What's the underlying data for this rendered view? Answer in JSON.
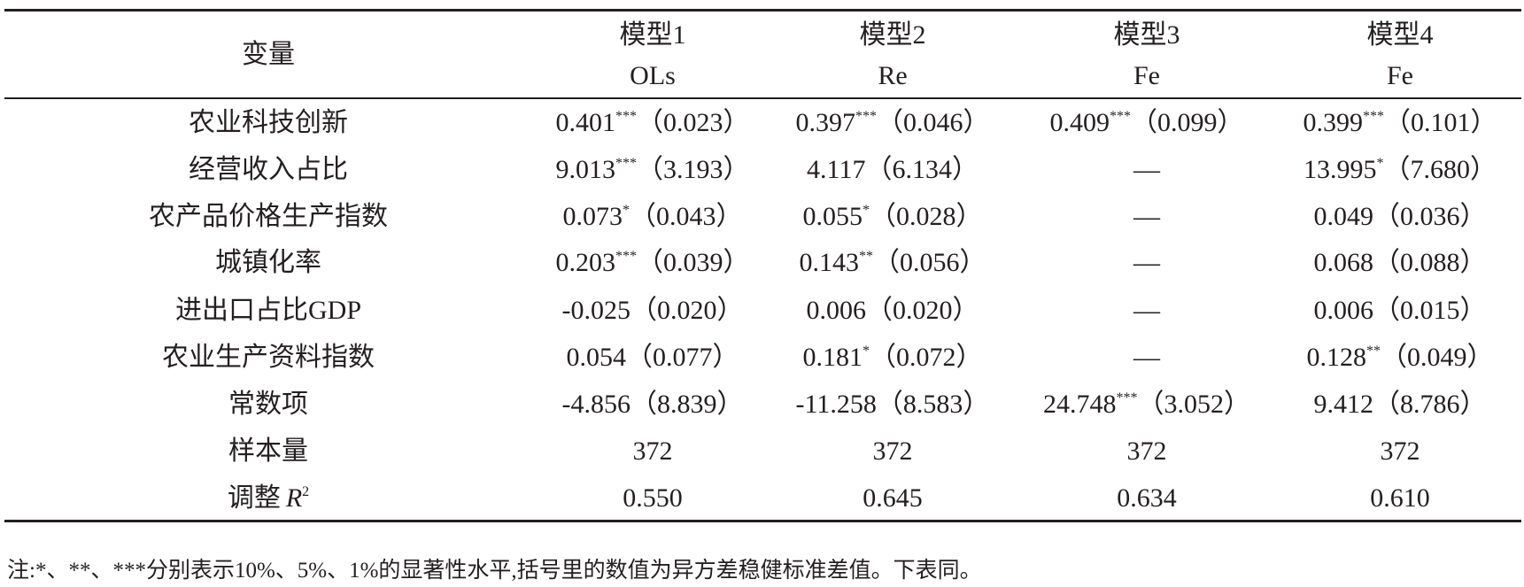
{
  "header": {
    "variable": "变量",
    "models": [
      {
        "name": "模型1",
        "method": "OLs"
      },
      {
        "name": "模型2",
        "method": "Re"
      },
      {
        "name": "模型3",
        "method": "Fe"
      },
      {
        "name": "模型4",
        "method": "Fe"
      }
    ]
  },
  "rows": [
    {
      "label": "农业科技创新",
      "cells": [
        {
          "value": "0.401",
          "stars": "***",
          "se": "（0.023）"
        },
        {
          "value": "0.397",
          "stars": "***",
          "se": "（0.046）"
        },
        {
          "value": "0.409",
          "stars": "***",
          "se": "（0.099）"
        },
        {
          "value": "0.399",
          "stars": "***",
          "se": "（0.101）"
        }
      ]
    },
    {
      "label": "经营收入占比",
      "cells": [
        {
          "value": "9.013",
          "stars": "***",
          "se": "（3.193）"
        },
        "4.117（6.134）",
        "—",
        {
          "value": "13.995",
          "stars": "*",
          "se": "（7.680）"
        }
      ]
    },
    {
      "label": "农产品价格生产指数",
      "cells": [
        {
          "value": "0.073",
          "stars": "*",
          "se": "（0.043）"
        },
        {
          "value": "0.055",
          "stars": "*",
          "se": "（0.028）"
        },
        "—",
        "0.049（0.036）"
      ]
    },
    {
      "label": "城镇化率",
      "cells": [
        {
          "value": "0.203",
          "stars": "***",
          "se": "（0.039）"
        },
        {
          "value": "0.143",
          "stars": "**",
          "se": "（0.056）"
        },
        "—",
        "0.068（0.088）"
      ]
    },
    {
      "label": "进出口占比GDP",
      "cells": [
        "-0.025（0.020）",
        "0.006（0.020）",
        "—",
        "0.006（0.015）"
      ]
    },
    {
      "label": "农业生产资料指数",
      "cells": [
        "0.054（0.077）",
        {
          "value": "0.181",
          "stars": "*",
          "se": "（0.072）"
        },
        "—",
        {
          "value": "0.128",
          "stars": "**",
          "se": "（0.049）"
        }
      ]
    },
    {
      "label": "常数项",
      "cells": [
        "-4.856（8.839）",
        "-11.258（8.583）",
        {
          "value": "24.748",
          "stars": "***",
          "se": "（3.052）"
        },
        "9.412（8.786）"
      ]
    },
    {
      "label": "样本量",
      "cells": [
        "372",
        "372",
        "372",
        "372"
      ]
    },
    {
      "label": {
        "text": "调整",
        "italic": "R",
        "sup": "2"
      },
      "cells": [
        "0.550",
        "0.645",
        "0.634",
        "0.610"
      ]
    }
  ],
  "note": "注:*、**、***分别表示10%、5%、1%的显著性水平,括号里的数值为异方差稳健标准差值。下表同。"
}
